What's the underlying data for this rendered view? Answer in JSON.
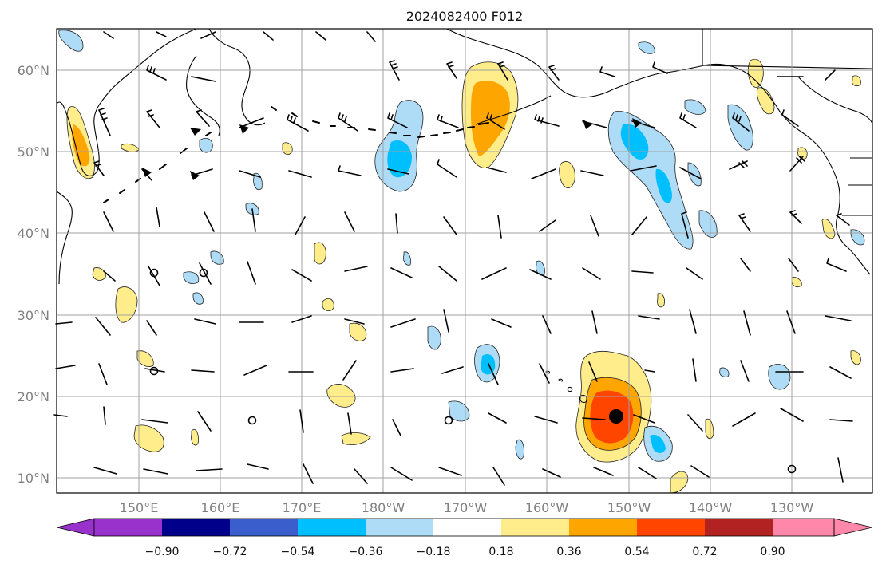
{
  "title": "2024082400 F012",
  "map": {
    "lat_labels": [
      "10°N",
      "20°N",
      "30°N",
      "40°N",
      "50°N",
      "60°N"
    ],
    "lon_labels": [
      "150°E",
      "160°E",
      "170°E",
      "180°W",
      "170°W",
      "160°W",
      "150°W",
      "140°W",
      "130°W"
    ],
    "storm_marker": {
      "label": "storm-center",
      "lat": 17.5,
      "lon": -151.5
    },
    "extent": {
      "lon_min": 140,
      "lon_max": 240,
      "lat_min": 8,
      "lat_max": 65
    }
  },
  "colorbar": {
    "tick_labels": [
      "−0.90",
      "−0.72",
      "−0.54",
      "−0.36",
      "−0.18",
      "0.18",
      "0.36",
      "0.54",
      "0.72",
      "0.90"
    ],
    "colors": [
      "#9932cc",
      "#00008b",
      "#3a5fcd",
      "#00bfff",
      "#aedcf7",
      "#ffffff",
      "#ffec8b",
      "#ffa500",
      "#ff4500",
      "#b22222",
      "#ff88aa"
    ]
  },
  "colors": {
    "coast": "#000000",
    "grid": "#a0a0a0",
    "pos1": "#ffec8b",
    "pos2": "#ffa500",
    "pos3": "#ff4500",
    "neg1": "#aedcf7",
    "neg2": "#00bfff"
  }
}
